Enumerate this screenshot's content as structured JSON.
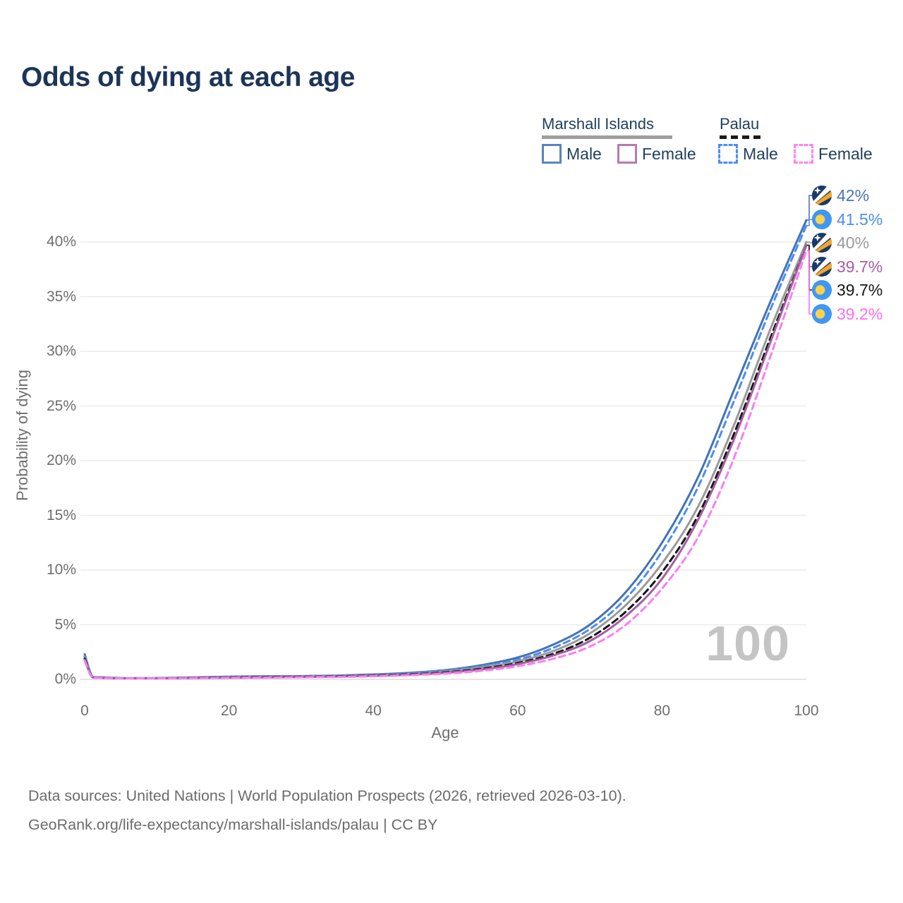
{
  "title": "Odds of dying at each age",
  "watermark": "100",
  "legend": {
    "groups": [
      {
        "label": "Marshall Islands",
        "line_style": "solid",
        "underline_color": "#9e9e9e",
        "items": [
          {
            "label": "Male",
            "color": "#5b83bf",
            "dashed": false
          },
          {
            "label": "Female",
            "color": "#b77ab4",
            "dashed": false
          }
        ]
      },
      {
        "label": "Palau",
        "line_style": "dashed",
        "underline_color": "#1a1a1a",
        "items": [
          {
            "label": "Male",
            "color": "#4d8cf5",
            "dashed": true
          },
          {
            "label": "Female",
            "color": "#ff85f0",
            "dashed": true
          }
        ]
      }
    ]
  },
  "chart_data": {
    "type": "line",
    "title": "Odds of dying at each age",
    "xlabel": "Age",
    "ylabel": "Probability of dying",
    "xlim": [
      0,
      100
    ],
    "ylim": [
      0,
      42
    ],
    "grid": "horizontal",
    "x_tick_values": [
      0,
      20,
      40,
      60,
      80,
      100
    ],
    "y_tick_values": [
      0,
      5,
      10,
      15,
      20,
      25,
      30,
      35,
      40
    ],
    "y_tick_suffix": "%",
    "hovered_age": "100",
    "ages": [
      0,
      1,
      2,
      5,
      10,
      15,
      20,
      25,
      30,
      35,
      40,
      45,
      50,
      55,
      60,
      65,
      70,
      75,
      80,
      85,
      90,
      95,
      100
    ],
    "series": [
      {
        "name": "Marshall Islands Male",
        "country": "marshall-islands",
        "sex": "male",
        "color": "#4273b8",
        "label_color": "#4a74b8",
        "dashed": false,
        "end_label": "42%",
        "end_value": 42,
        "values": [
          2.3,
          0.3,
          0.2,
          0.12,
          0.12,
          0.18,
          0.25,
          0.28,
          0.3,
          0.35,
          0.45,
          0.6,
          0.85,
          1.3,
          2.0,
          3.2,
          5.0,
          8.0,
          12.5,
          18.5,
          26.5,
          34.5,
          42
        ]
      },
      {
        "name": "Palau Male",
        "country": "palau",
        "sex": "male",
        "color": "#4d8cf5",
        "label_color": "#4d8df2",
        "dashed": true,
        "end_label": "41.5%",
        "end_value": 41.5,
        "values": [
          2.1,
          0.28,
          0.18,
          0.11,
          0.11,
          0.16,
          0.22,
          0.25,
          0.28,
          0.32,
          0.4,
          0.55,
          0.8,
          1.2,
          1.8,
          2.9,
          4.6,
          7.4,
          11.7,
          17.6,
          25.5,
          33.8,
          41.5
        ]
      },
      {
        "name": "Marshall Islands Both sexes",
        "country": "marshall-islands",
        "sex": "both",
        "color": "#9a9a9a",
        "label_color": "#9a9a9a",
        "dashed": false,
        "end_label": "40%",
        "end_value": 40,
        "values": [
          2.0,
          0.26,
          0.17,
          0.1,
          0.1,
          0.15,
          0.2,
          0.23,
          0.26,
          0.3,
          0.38,
          0.5,
          0.72,
          1.1,
          1.65,
          2.6,
          4.2,
          6.8,
          10.6,
          15.8,
          23.3,
          32.0,
          40
        ]
      },
      {
        "name": "Marshall Islands Female",
        "country": "marshall-islands",
        "sex": "female",
        "color": "#a45fa0",
        "label_color": "#a85ca4",
        "dashed": false,
        "end_label": "39.7%",
        "end_value": 39.7,
        "values": [
          1.8,
          0.22,
          0.15,
          0.09,
          0.09,
          0.12,
          0.15,
          0.18,
          0.21,
          0.25,
          0.32,
          0.42,
          0.6,
          0.9,
          1.4,
          2.2,
          3.5,
          5.8,
          9.2,
          14.6,
          22.0,
          30.8,
          39.7
        ]
      },
      {
        "name": "Palau Both sexes",
        "country": "palau",
        "sex": "both",
        "color": "#161616",
        "label_color": "#161616",
        "dashed": true,
        "end_label": "39.7%",
        "end_value": 39.7,
        "values": [
          1.9,
          0.24,
          0.16,
          0.1,
          0.1,
          0.14,
          0.18,
          0.21,
          0.24,
          0.28,
          0.35,
          0.46,
          0.65,
          0.98,
          1.5,
          2.35,
          3.8,
          6.2,
          9.8,
          15.0,
          22.5,
          31.2,
          39.7
        ]
      },
      {
        "name": "Palau Female",
        "country": "palau",
        "sex": "female",
        "color": "#f97ef3",
        "label_color": "#fb6ef2",
        "dashed": true,
        "end_label": "39.2%",
        "end_value": 39.2,
        "values": [
          1.7,
          0.2,
          0.14,
          0.08,
          0.08,
          0.11,
          0.14,
          0.16,
          0.19,
          0.22,
          0.28,
          0.38,
          0.52,
          0.78,
          1.2,
          1.9,
          3.0,
          5.0,
          8.3,
          13.0,
          20.3,
          29.5,
          39.2
        ]
      }
    ]
  },
  "footer": {
    "line1": "Data sources: United Nations | World Population Prospects (2026, retrieved 2026-03-10).",
    "line2": "GeoRank.org/life-expectancy/marshall-islands/palau | CC BY"
  }
}
